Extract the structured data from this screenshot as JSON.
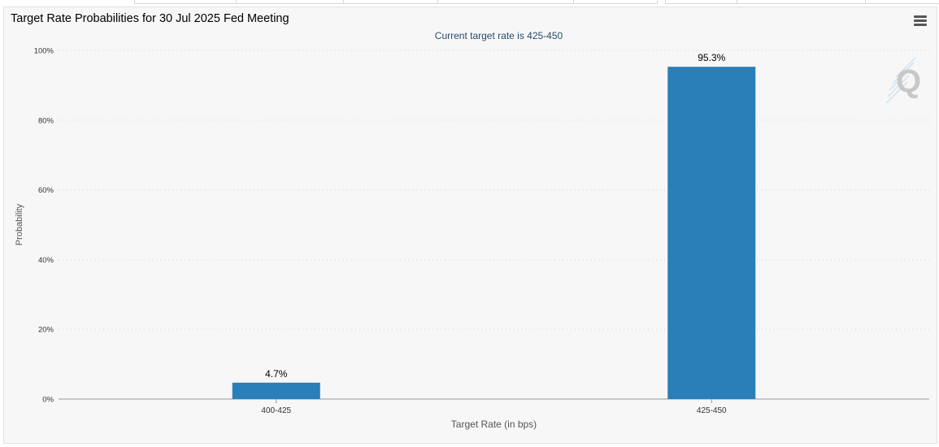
{
  "chart_data": {
    "type": "bar",
    "title": "Target Rate Probabilities for 30 Jul 2025 Fed Meeting",
    "subtitle": "Current target rate is 425-450",
    "xlabel": "Target Rate (in bps)",
    "ylabel": "Probability",
    "categories": [
      "400-425",
      "425-450"
    ],
    "values": [
      4.7,
      95.3
    ],
    "data_labels": [
      "4.7%",
      "95.3%"
    ],
    "ylim": [
      0,
      100
    ],
    "yticks": [
      0,
      20,
      40,
      60,
      80,
      100
    ],
    "ytick_labels": [
      "0%",
      "20%",
      "40%",
      "60%",
      "80%",
      "100%"
    ],
    "grid": true,
    "legend": "none",
    "bar_color": "#2b7fb8"
  },
  "toolbar": {
    "menu_icon": "hamburger-menu-icon",
    "watermark_icon": "q-logo-watermark"
  },
  "colors": {
    "background": "#f7f7f7",
    "bar": "#2b7fb8",
    "grid": "#d6d6d6",
    "axis": "#999999",
    "subtitle": "#274b6d"
  }
}
